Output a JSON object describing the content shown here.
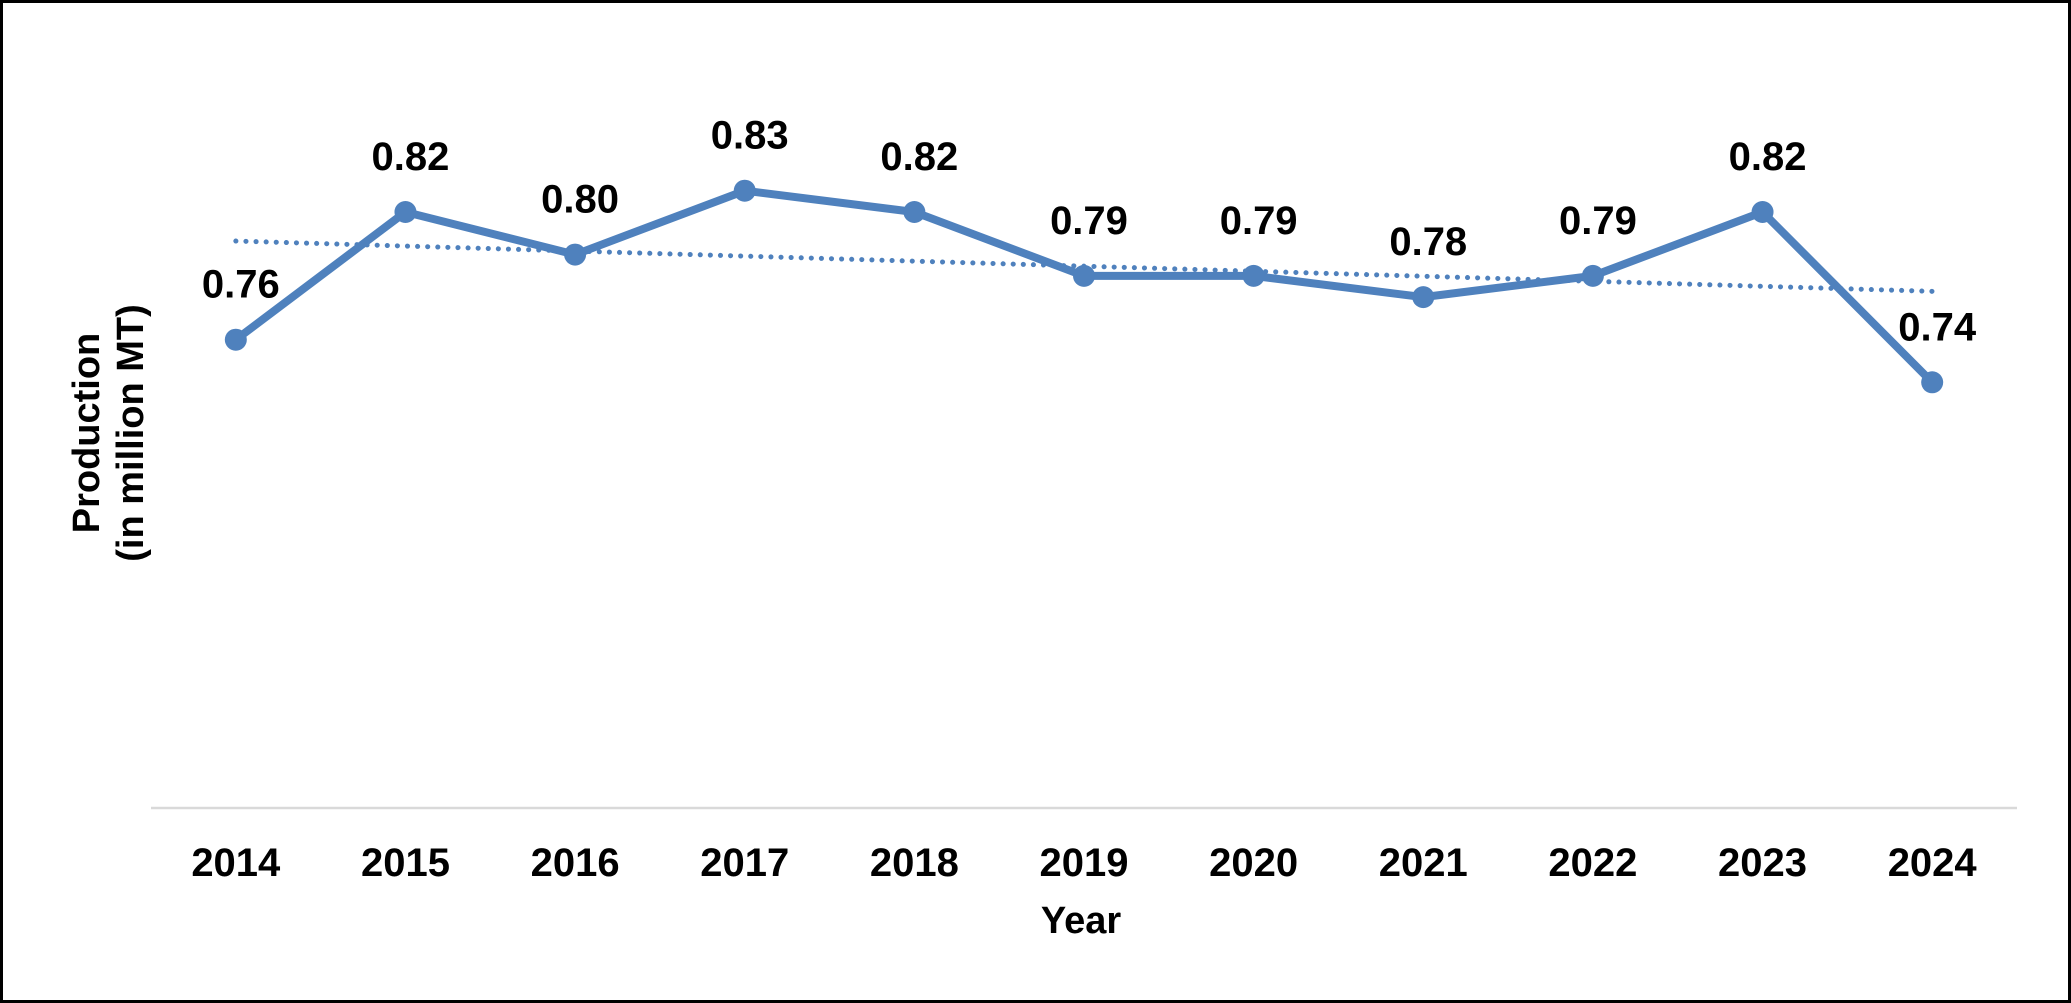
{
  "chart_data": {
    "type": "line",
    "title": "",
    "xlabel": "Year",
    "ylabel_lines": [
      "Production",
      "(in million MT)"
    ],
    "categories": [
      "2014",
      "2015",
      "2016",
      "2017",
      "2018",
      "2019",
      "2020",
      "2021",
      "2022",
      "2023",
      "2024"
    ],
    "series": [
      {
        "values": [
          0.76,
          0.82,
          0.8,
          0.83,
          0.82,
          0.79,
          0.79,
          0.78,
          0.79,
          0.82,
          0.74
        ],
        "value_labels": [
          "0.76",
          "0.82",
          "0.80",
          "0.83",
          "0.82",
          "0.79",
          "0.79",
          "0.78",
          "0.79",
          "0.82",
          "0.74"
        ],
        "color": "#4f81bd",
        "markers": true,
        "data_labels": true
      }
    ],
    "trendline": {
      "type": "linear",
      "style": "dotted",
      "color": "#4f81bd"
    },
    "ylim": [
      0.54,
      0.89
    ],
    "grid": false,
    "legend": "none",
    "y_axis_visible": false
  }
}
